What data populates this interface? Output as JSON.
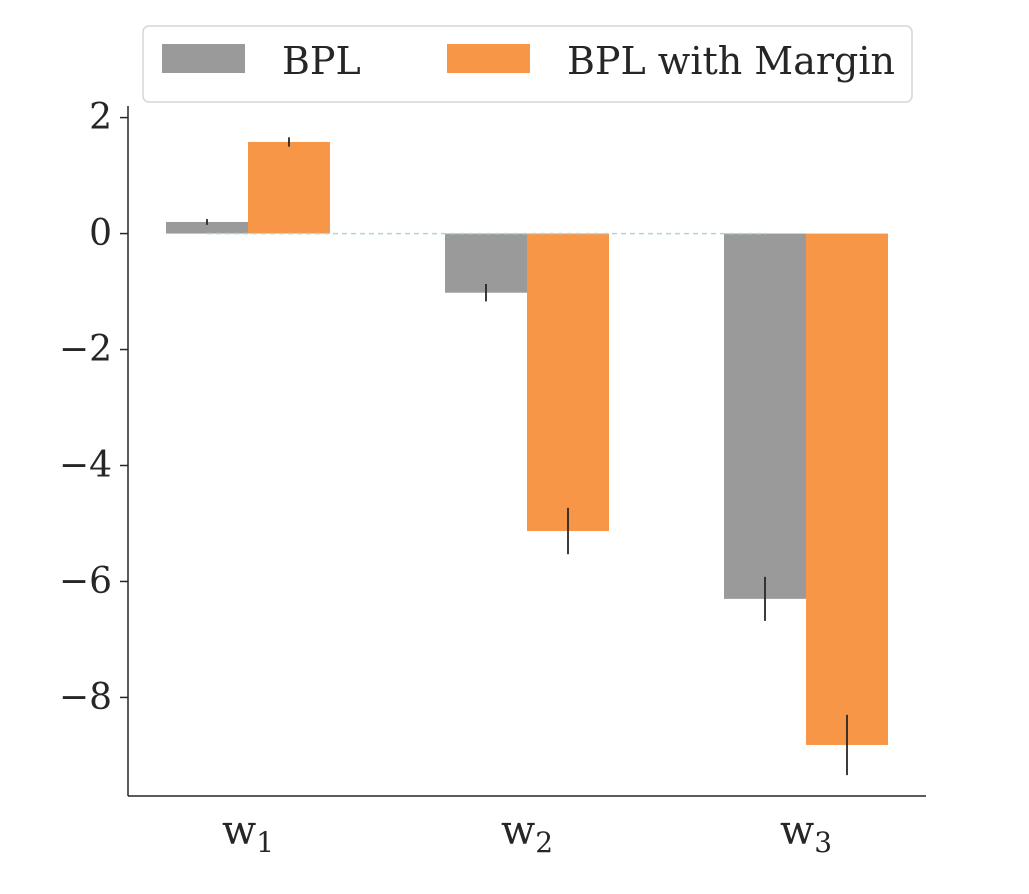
{
  "chart_data": {
    "type": "bar",
    "title": "",
    "xlabel": "",
    "ylabel": "",
    "categories": [
      {
        "base": "w",
        "sub": "1"
      },
      {
        "base": "w",
        "sub": "2"
      },
      {
        "base": "w",
        "sub": "3"
      }
    ],
    "series": [
      {
        "name": "BPL",
        "color": "#9a9a9a",
        "values": [
          0.2,
          -1.02,
          -6.3
        ],
        "errors": [
          0.05,
          0.15,
          0.38
        ]
      },
      {
        "name": "BPL with Margin",
        "color": "#f79646",
        "values": [
          1.58,
          -5.13,
          -8.82
        ],
        "errors": [
          0.08,
          0.4,
          0.52
        ]
      }
    ],
    "ylim": [
      -9.7,
      2.2
    ],
    "yticks": [
      2,
      0,
      -2,
      -4,
      -6,
      -8
    ],
    "ytick_labels": [
      "2",
      "0",
      "−2",
      "−4",
      "−6",
      "−8"
    ],
    "zero_line_color": "#a8d8e0",
    "legend_position": "top-center",
    "grid": false
  }
}
